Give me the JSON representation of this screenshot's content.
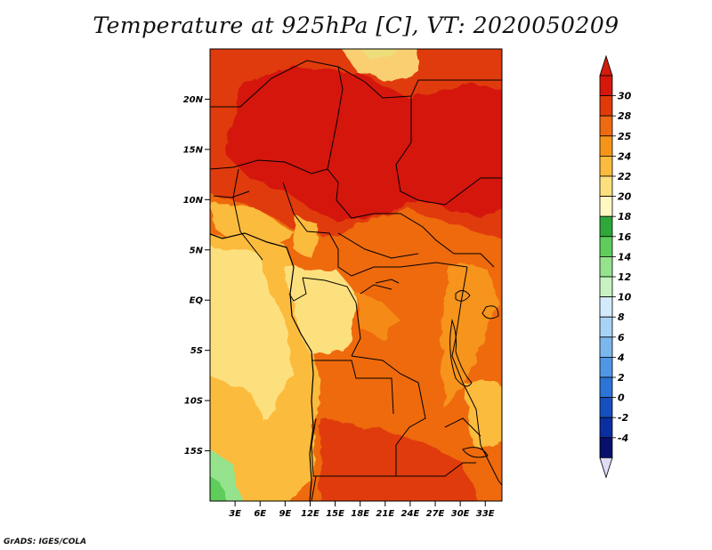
{
  "title": "Temperature at 925hPa [C], VT: 2020050209",
  "footer": "GrADS: IGES/COLA",
  "map": {
    "lat_ticks": [
      {
        "label": "20N",
        "value": 20
      },
      {
        "label": "15N",
        "value": 15
      },
      {
        "label": "10N",
        "value": 10
      },
      {
        "label": "5N",
        "value": 5
      },
      {
        "label": "EQ",
        "value": 0
      },
      {
        "label": "5S",
        "value": -5
      },
      {
        "label": "10S",
        "value": -10
      },
      {
        "label": "15S",
        "value": -15
      }
    ],
    "lon_ticks": [
      {
        "label": "3E",
        "value": 3
      },
      {
        "label": "6E",
        "value": 6
      },
      {
        "label": "9E",
        "value": 9
      },
      {
        "label": "12E",
        "value": 12
      },
      {
        "label": "15E",
        "value": 15
      },
      {
        "label": "18E",
        "value": 18
      },
      {
        "label": "21E",
        "value": 21
      },
      {
        "label": "24E",
        "value": 24
      },
      {
        "label": "27E",
        "value": 27
      },
      {
        "label": "30E",
        "value": 30
      },
      {
        "label": "33E",
        "value": 33
      }
    ],
    "extent": {
      "lon_min": 0,
      "lon_max": 35,
      "lat_min": -20,
      "lat_max": 25
    }
  },
  "colorbar": {
    "labels": [
      "30",
      "28",
      "25",
      "24",
      "22",
      "20",
      "18",
      "16",
      "14",
      "12",
      "10",
      "8",
      "6",
      "4",
      "2",
      "0",
      "-2",
      "-4"
    ],
    "colors": [
      "#d4180b",
      "#e03a08",
      "#ee6a10",
      "#f6941a",
      "#fbbb3c",
      "#fde07e",
      "#fff8c2",
      "#2fa83a",
      "#5fcd5c",
      "#95e38c",
      "#c6f3bf",
      "#d3eafc",
      "#a9d3f6",
      "#7bb7ee",
      "#4f97e4",
      "#2c74d6",
      "#1650bf",
      "#0b2fa0",
      "#08106b"
    ],
    "top_arrow_color": "#d01c0b",
    "bottom_arrow_color": "#e0dcf5"
  }
}
